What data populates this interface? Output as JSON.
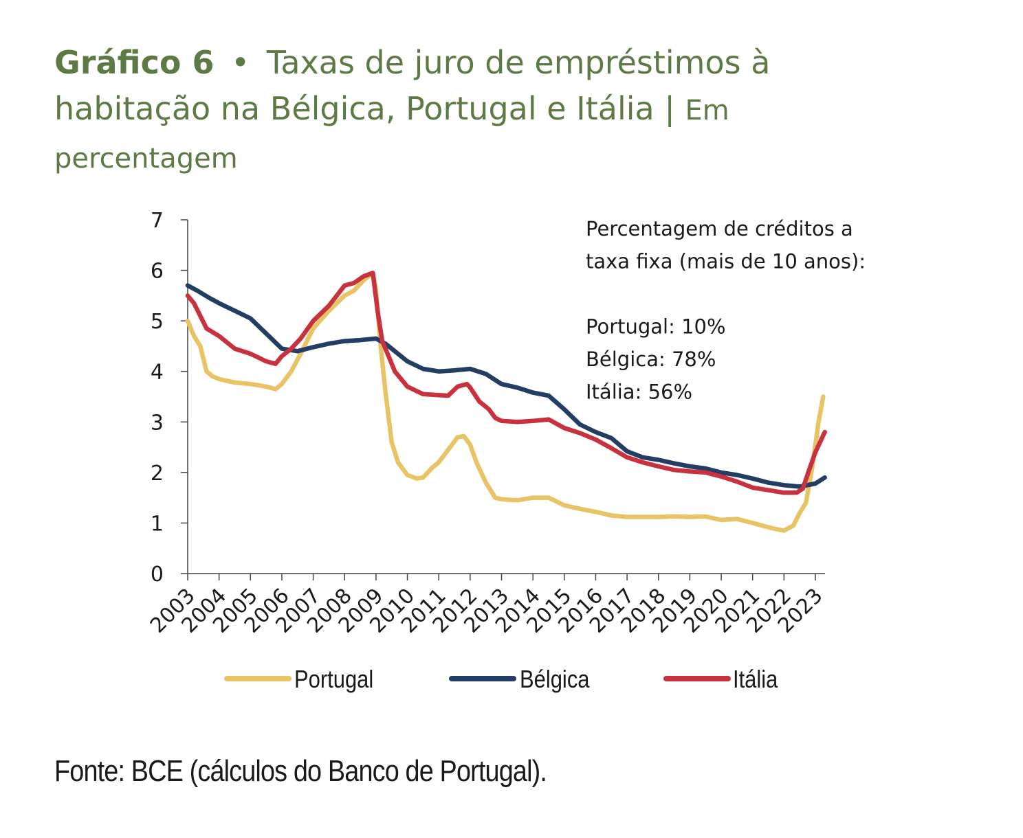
{
  "title": {
    "number": "Gráfico 6",
    "bullet": "•",
    "text": "Taxas de juro de empréstimos à habitação na Bélgica, Portugal e Itália",
    "separator": "|",
    "unit": "Em percentagem"
  },
  "note": {
    "lines": [
      "Percentagem de créditos a",
      "taxa fixa (mais de 10 anos):",
      "",
      "Portugal: 10%",
      "Bélgica: 78%",
      "Itália: 56%"
    ]
  },
  "source": "Fonte: BCE (cálculos do Banco de Portugal).",
  "chart_data": {
    "type": "line",
    "title": "Taxas de juro de empréstimos à habitação na Bélgica, Portugal e Itália",
    "ylabel": "",
    "xlabel": "",
    "ylim": [
      0,
      7
    ],
    "yticks": [
      0,
      1,
      2,
      3,
      4,
      5,
      6,
      7
    ],
    "xlim": [
      2003.0,
      2023.35
    ],
    "xticks": [
      2003,
      2004,
      2005,
      2006,
      2007,
      2008,
      2009,
      2010,
      2011,
      2012,
      2013,
      2014,
      2015,
      2016,
      2017,
      2018,
      2019,
      2020,
      2021,
      2022,
      2023
    ],
    "xtick_labels": [
      "2003",
      "2004",
      "2005",
      "2006",
      "2007",
      "2008",
      "2009",
      "2010",
      "2011",
      "2012",
      "2013",
      "2014",
      "2015",
      "2016",
      "2017",
      "2018",
      "2019",
      "2020",
      "2021",
      "2022",
      "2023"
    ],
    "grid": false,
    "legend": "bottom",
    "series": [
      {
        "name": "Portugal",
        "color": "#e8c466",
        "x": [
          2003.0,
          2003.2,
          2003.4,
          2003.6,
          2003.8,
          2004.0,
          2004.5,
          2005.0,
          2005.5,
          2005.8,
          2006.0,
          2006.3,
          2006.6,
          2007.0,
          2007.5,
          2008.0,
          2008.3,
          2008.6,
          2008.9,
          2009.0,
          2009.15,
          2009.3,
          2009.5,
          2009.7,
          2010.0,
          2010.3,
          2010.5,
          2010.8,
          2011.0,
          2011.3,
          2011.6,
          2011.8,
          2012.0,
          2012.2,
          2012.5,
          2012.8,
          2013.0,
          2013.5,
          2014.0,
          2014.5,
          2015.0,
          2015.5,
          2016.0,
          2016.5,
          2017.0,
          2017.5,
          2018.0,
          2018.5,
          2019.0,
          2019.5,
          2020.0,
          2020.5,
          2021.0,
          2021.3,
          2021.6,
          2022.0,
          2022.3,
          2022.5,
          2022.7,
          2022.9,
          2023.1,
          2023.25
        ],
        "values": [
          5.0,
          4.7,
          4.5,
          4.0,
          3.9,
          3.85,
          3.78,
          3.75,
          3.7,
          3.65,
          3.75,
          4.0,
          4.35,
          4.85,
          5.2,
          5.5,
          5.6,
          5.8,
          5.95,
          5.6,
          4.5,
          3.6,
          2.6,
          2.2,
          1.95,
          1.88,
          1.9,
          2.1,
          2.2,
          2.45,
          2.7,
          2.72,
          2.55,
          2.2,
          1.8,
          1.5,
          1.47,
          1.45,
          1.5,
          1.5,
          1.35,
          1.28,
          1.22,
          1.15,
          1.12,
          1.12,
          1.12,
          1.13,
          1.12,
          1.13,
          1.06,
          1.08,
          1.0,
          0.95,
          0.9,
          0.85,
          0.95,
          1.2,
          1.4,
          2.1,
          3.0,
          3.5
        ]
      },
      {
        "name": "Bélgica",
        "color": "#233d63",
        "x": [
          2003.0,
          2003.3,
          2003.7,
          2004.0,
          2004.5,
          2005.0,
          2005.5,
          2006.0,
          2006.5,
          2007.0,
          2007.5,
          2008.0,
          2008.5,
          2009.0,
          2009.3,
          2009.6,
          2010.0,
          2010.5,
          2011.0,
          2011.5,
          2012.0,
          2012.5,
          2013.0,
          2013.5,
          2014.0,
          2014.5,
          2015.0,
          2015.5,
          2016.0,
          2016.5,
          2017.0,
          2017.5,
          2018.0,
          2018.5,
          2019.0,
          2019.5,
          2020.0,
          2020.5,
          2021.0,
          2021.5,
          2022.0,
          2022.5,
          2023.0,
          2023.3
        ],
        "values": [
          5.7,
          5.6,
          5.45,
          5.35,
          5.2,
          5.05,
          4.75,
          4.45,
          4.4,
          4.48,
          4.55,
          4.6,
          4.62,
          4.65,
          4.55,
          4.4,
          4.2,
          4.05,
          4.0,
          4.02,
          4.05,
          3.95,
          3.75,
          3.68,
          3.58,
          3.52,
          3.25,
          2.95,
          2.8,
          2.68,
          2.42,
          2.3,
          2.25,
          2.18,
          2.12,
          2.08,
          2.0,
          1.95,
          1.88,
          1.8,
          1.75,
          1.72,
          1.78,
          1.9
        ]
      },
      {
        "name": "Itália",
        "color": "#c8323f",
        "x": [
          2003.0,
          2003.2,
          2003.4,
          2003.6,
          2004.0,
          2004.5,
          2005.0,
          2005.5,
          2005.8,
          2006.0,
          2006.3,
          2006.6,
          2007.0,
          2007.5,
          2008.0,
          2008.3,
          2008.6,
          2008.9,
          2009.05,
          2009.2,
          2009.4,
          2009.6,
          2010.0,
          2010.5,
          2011.0,
          2011.3,
          2011.6,
          2011.9,
          2012.0,
          2012.3,
          2012.6,
          2012.8,
          2013.0,
          2013.5,
          2014.0,
          2014.5,
          2015.0,
          2015.5,
          2016.0,
          2016.5,
          2017.0,
          2017.5,
          2018.0,
          2018.5,
          2019.0,
          2019.5,
          2020.0,
          2020.5,
          2021.0,
          2021.5,
          2022.0,
          2022.4,
          2022.6,
          2022.8,
          2023.0,
          2023.15,
          2023.3
        ],
        "values": [
          5.5,
          5.35,
          5.1,
          4.85,
          4.7,
          4.45,
          4.35,
          4.2,
          4.15,
          4.3,
          4.45,
          4.65,
          5.0,
          5.3,
          5.7,
          5.75,
          5.88,
          5.95,
          5.2,
          4.6,
          4.3,
          4.0,
          3.7,
          3.55,
          3.53,
          3.52,
          3.7,
          3.75,
          3.68,
          3.4,
          3.25,
          3.08,
          3.02,
          3.0,
          3.02,
          3.05,
          2.88,
          2.78,
          2.65,
          2.48,
          2.3,
          2.2,
          2.12,
          2.05,
          2.02,
          2.0,
          1.92,
          1.82,
          1.7,
          1.65,
          1.6,
          1.6,
          1.68,
          2.05,
          2.4,
          2.6,
          2.8
        ]
      }
    ]
  }
}
